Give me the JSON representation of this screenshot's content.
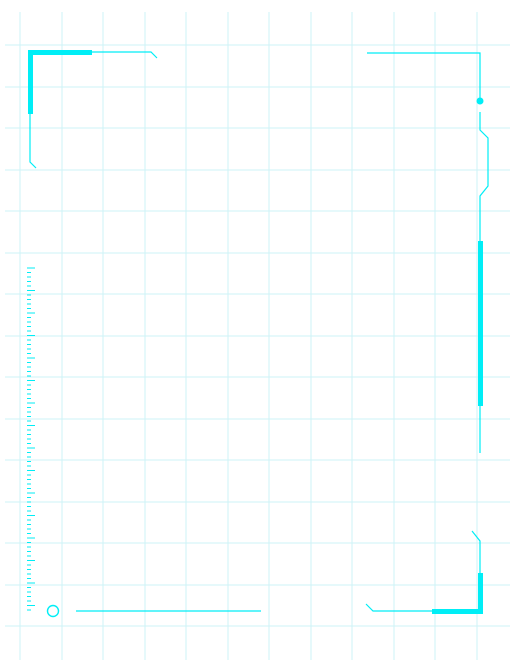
{
  "page": {
    "background": "#ffffff",
    "grid_color": "#cdf3f7",
    "accent_color": "#00eef6",
    "grid_visible": true
  },
  "decorations": {
    "top_left_bracket": "corner-bracket",
    "top_right_bracket": "corner-bracket",
    "bottom_right_bracket": "corner-bracket",
    "right_rail": "vertical-accent-rail",
    "left_ruler": "tick-ruler",
    "bottom_left_marker": "ring-marker",
    "bottom_line": "horizontal-accent-line"
  }
}
